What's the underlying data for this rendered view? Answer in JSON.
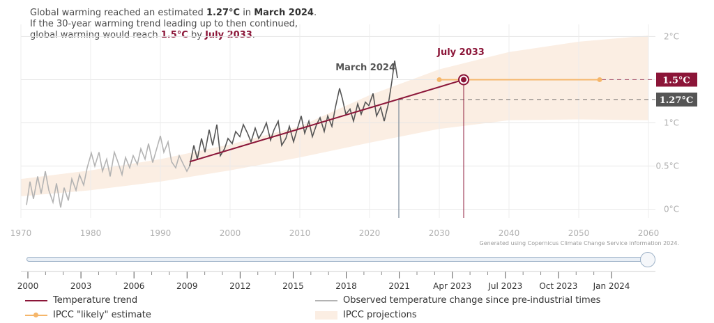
{
  "headline": {
    "line1_pre": "Global warming reached an estimated ",
    "line1_value": "1.27°C",
    "line1_mid": " in ",
    "line1_date": "March 2024",
    "line1_post": ".",
    "line2": "If the 30-year warming trend leading up to then continued,",
    "line3_pre": "global warming would reach ",
    "line3_value": "1.5°C",
    "line3_mid": " by ",
    "line3_date": "July 2033",
    "line3_post": "."
  },
  "credit": "Generated using Copernicus Climate Change Service information 2024.",
  "colors": {
    "trend": "#8b1538",
    "observed_recent": "#555555",
    "observed_early": "#b3b3b3",
    "ipcc_estimate": "#f5b66a",
    "ipcc_band": "#fbeee3",
    "label_1_27": "#555555",
    "label_1_5": "#8b1538",
    "slider_track": "#e9eff6"
  },
  "legend": [
    {
      "label": "Temperature trend",
      "kind": "line",
      "color": "#8b1538"
    },
    {
      "label": "Observed temperature change since pre-industrial times",
      "kind": "line",
      "color": "#b3b3b3"
    },
    {
      "label": "IPCC \"likely\" estimate",
      "kind": "dotline",
      "color": "#f5b66a"
    },
    {
      "label": "IPCC projections",
      "kind": "band",
      "color": "#fbeee3"
    }
  ],
  "navigator": {
    "tick_labels": [
      "2000",
      "2003",
      "2006",
      "2009",
      "2012",
      "2015",
      "2018",
      "2021",
      "Apr 2023",
      "Jul 2023",
      "Oct 2023",
      "Jan 2024"
    ],
    "range_start": "1970",
    "range_end": "2060"
  },
  "chart_data": {
    "type": "line",
    "xlim": [
      1970,
      2060
    ],
    "ylim": [
      -0.1,
      2.1
    ],
    "x_ticks": [
      1970,
      1980,
      1990,
      2000,
      2010,
      2020,
      2030,
      2040,
      2050,
      2060
    ],
    "y_ticks": [
      {
        "value": 0,
        "label": "0°C"
      },
      {
        "value": 0.5,
        "label": "0.5°C"
      },
      {
        "value": 1,
        "label": "1°C"
      },
      {
        "value": 1.5,
        "label": "1.5°C"
      },
      {
        "value": 2,
        "label": "2°C"
      }
    ],
    "grid": true,
    "series": [
      {
        "name": "Observed temperature change since pre-industrial times",
        "kind": "observed",
        "split_year": 1994.2,
        "x": [
          1970.8,
          1971.3,
          1971.8,
          1972.4,
          1972.9,
          1973.5,
          1974.0,
          1974.6,
          1975.1,
          1975.7,
          1976.2,
          1976.8,
          1977.3,
          1977.9,
          1978.4,
          1979.0,
          1979.5,
          1980.1,
          1980.6,
          1981.2,
          1981.7,
          1982.3,
          1982.8,
          1983.4,
          1983.9,
          1984.5,
          1985.0,
          1985.6,
          1986.1,
          1986.7,
          1987.2,
          1987.8,
          1988.3,
          1988.9,
          1989.4,
          1990.0,
          1990.5,
          1991.1,
          1991.6,
          1992.2,
          1992.7,
          1993.3,
          1993.8,
          1994.2,
          1994.8,
          1995.3,
          1995.9,
          1996.4,
          1997.0,
          1997.5,
          1998.1,
          1998.6,
          1999.2,
          1999.7,
          2000.3,
          2000.8,
          2001.4,
          2001.9,
          2002.5,
          2003.0,
          2003.6,
          2004.1,
          2004.7,
          2005.2,
          2005.8,
          2006.3,
          2006.9,
          2007.4,
          2008.0,
          2008.5,
          2009.1,
          2009.6,
          2010.2,
          2010.7,
          2011.3,
          2011.8,
          2012.4,
          2012.9,
          2013.5,
          2014.0,
          2014.6,
          2015.1,
          2015.7,
          2016.1,
          2016.6,
          2017.2,
          2017.7,
          2018.3,
          2018.8,
          2019.4,
          2019.9,
          2020.5,
          2021.0,
          2021.6,
          2022.1,
          2022.7,
          2023.2,
          2023.6,
          2024.0
        ],
        "y": [
          0.05,
          0.32,
          0.12,
          0.38,
          0.18,
          0.44,
          0.22,
          0.08,
          0.3,
          0.02,
          0.25,
          0.1,
          0.35,
          0.22,
          0.4,
          0.28,
          0.48,
          0.65,
          0.5,
          0.66,
          0.44,
          0.58,
          0.38,
          0.66,
          0.55,
          0.4,
          0.6,
          0.48,
          0.62,
          0.52,
          0.7,
          0.58,
          0.76,
          0.54,
          0.68,
          0.85,
          0.66,
          0.78,
          0.55,
          0.48,
          0.62,
          0.52,
          0.44,
          0.5,
          0.74,
          0.58,
          0.82,
          0.66,
          0.92,
          0.74,
          0.98,
          0.62,
          0.7,
          0.82,
          0.76,
          0.9,
          0.84,
          0.98,
          0.88,
          0.78,
          0.94,
          0.82,
          0.9,
          1.0,
          0.8,
          0.92,
          1.02,
          0.74,
          0.82,
          0.96,
          0.78,
          0.92,
          1.08,
          0.88,
          1.02,
          0.84,
          0.98,
          1.06,
          0.9,
          1.08,
          0.96,
          1.18,
          1.4,
          1.28,
          1.1,
          1.16,
          1.02,
          1.22,
          1.1,
          1.24,
          1.2,
          1.34,
          1.08,
          1.18,
          1.02,
          1.22,
          1.48,
          1.72,
          1.52
        ]
      },
      {
        "name": "Temperature trend",
        "kind": "trend",
        "x": [
          1994.2,
          2033.5
        ],
        "y": [
          0.55,
          1.5
        ]
      },
      {
        "name": "IPCC \"likely\" estimate",
        "kind": "ipcc_estimate",
        "x": [
          2030,
          2053
        ],
        "y": [
          1.5,
          1.5
        ]
      },
      {
        "name": "IPCC projections",
        "kind": "band",
        "x": [
          1970,
          1980,
          1990,
          2000,
          2010,
          2020,
          2030,
          2040,
          2050,
          2060
        ],
        "low": [
          0.15,
          0.22,
          0.32,
          0.45,
          0.6,
          0.77,
          0.93,
          1.03,
          1.04,
          1.03
        ],
        "high": [
          0.35,
          0.45,
          0.58,
          0.75,
          0.96,
          1.32,
          1.62,
          1.82,
          1.94,
          2.01
        ]
      }
    ],
    "markers": [
      {
        "label": "March 2024",
        "x": 2024.2,
        "y": 1.27,
        "kind": "observed_marker"
      },
      {
        "label": "July 2033",
        "x": 2033.5,
        "y": 1.5,
        "kind": "target_marker"
      }
    ],
    "level_labels": [
      {
        "value": 1.5,
        "label": "1.5°C"
      },
      {
        "value": 1.27,
        "label": "1.27°C"
      }
    ]
  }
}
